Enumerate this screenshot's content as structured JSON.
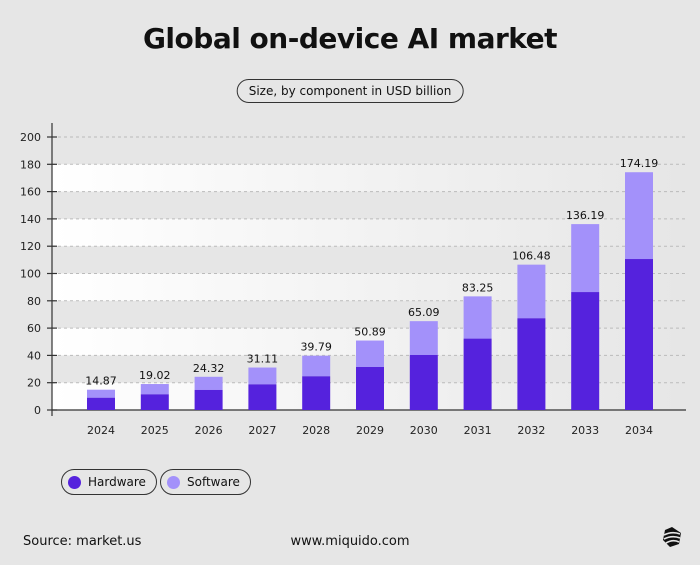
{
  "title": "Global on-device AI market",
  "subtitle": "Size, by component in USD billion",
  "source": "Source: market.us",
  "website": "www.miquido.com",
  "logo_icon": "miquido-logo-icon",
  "colors": {
    "hardware": "#5522dd",
    "software": "#a391fa"
  },
  "chart_data": {
    "type": "bar",
    "stacked": true,
    "categories": [
      "2024",
      "2025",
      "2026",
      "2027",
      "2028",
      "2029",
      "2030",
      "2031",
      "2032",
      "2033",
      "2034"
    ],
    "series": [
      {
        "name": "Hardware",
        "values": [
          9.0,
          11.5,
          14.7,
          18.8,
          24.7,
          31.5,
          40.3,
          52.3,
          67.2,
          86.4,
          110.6
        ]
      },
      {
        "name": "Software",
        "values": [
          5.87,
          7.52,
          9.62,
          12.31,
          15.09,
          19.39,
          24.79,
          30.95,
          39.28,
          49.79,
          63.59
        ]
      }
    ],
    "totals": [
      "14.87",
      "19.02",
      "24.32",
      "31.11",
      "39.79",
      "50.89",
      "65.09",
      "83.25",
      "106.48",
      "136.19",
      "174.19"
    ],
    "ylim": [
      0,
      200
    ],
    "yticks": [
      "0",
      "20",
      "40",
      "60",
      "80",
      "100",
      "120",
      "140",
      "160",
      "180",
      "200"
    ],
    "grid": true,
    "legend": "bottom-left",
    "xlabel": "",
    "ylabel": ""
  }
}
